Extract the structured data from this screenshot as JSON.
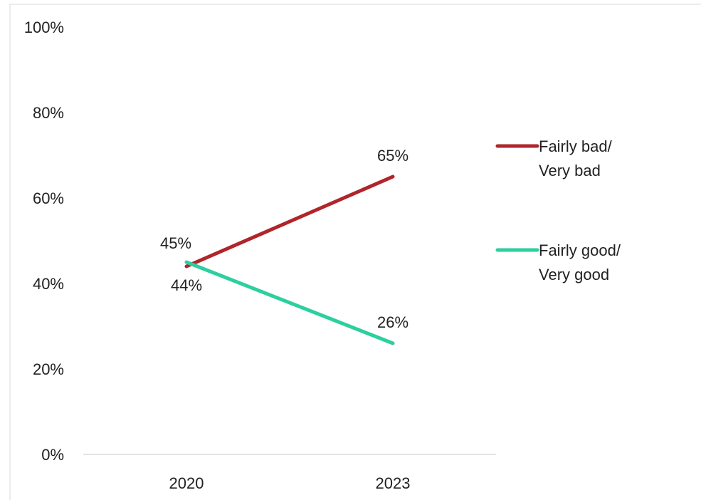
{
  "chart_data": {
    "type": "line",
    "title": "",
    "xlabel": "",
    "ylabel": "",
    "categories": [
      "2020",
      "2023"
    ],
    "ylim": [
      0,
      100
    ],
    "yticks": [
      0,
      20,
      40,
      60,
      80,
      100
    ],
    "ytick_labels": [
      "0%",
      "20%",
      "40%",
      "60%",
      "80%",
      "100%"
    ],
    "grid": false,
    "legend_placement": "right",
    "series": [
      {
        "name": "Fairly bad/ Very bad",
        "legend_lines": [
          "Fairly bad/",
          "Very bad"
        ],
        "values": [
          44,
          65
        ],
        "data_labels": [
          "44%",
          "65%"
        ],
        "color": "#b0252b"
      },
      {
        "name": "Fairly good/ Very good",
        "legend_lines": [
          "Fairly good/",
          "Very good"
        ],
        "values": [
          45,
          26
        ],
        "data_labels": [
          "45%",
          "26%"
        ],
        "color": "#2ccf9e"
      }
    ]
  }
}
